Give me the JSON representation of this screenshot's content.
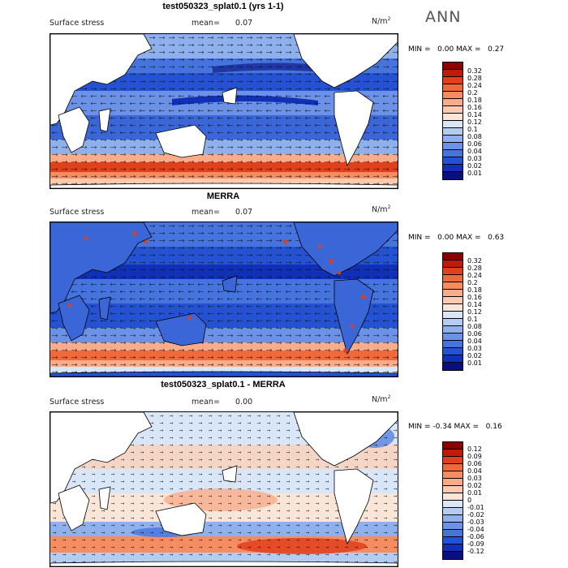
{
  "season": "ANN",
  "units_base": "N/m",
  "units_exp": "2",
  "panels": [
    {
      "title": "test050323_splat0.1 (yrs 1-1)",
      "variable": "Surface stress",
      "mean_label": "mean=",
      "mean_value": "0.07",
      "min_max": "MIN =   0.00 MAX =   0.27",
      "levels": [
        "0.32",
        "0.28",
        "0.24",
        "0.2",
        "0.18",
        "0.16",
        "0.14",
        "0.12",
        "0.1",
        "0.08",
        "0.06",
        "0.04",
        "0.03",
        "0.02",
        "0.01"
      ],
      "colors": [
        "#8b0000",
        "#bf1a0a",
        "#e0401c",
        "#ee6a3c",
        "#f58c62",
        "#f9ac8a",
        "#fbcab0",
        "#fbe5d6",
        "#d8e6f8",
        "#b3ccf2",
        "#8eb0ec",
        "#6b92e6",
        "#4574de",
        "#2552d2",
        "#1030b8",
        "#07107e"
      ]
    },
    {
      "title": "MERRA",
      "variable": "Surface stress",
      "mean_label": "mean=",
      "mean_value": "0.07",
      "min_max": "MIN =   0.00 MAX =   0.63",
      "levels": [
        "0.32",
        "0.28",
        "0.24",
        "0.2",
        "0.18",
        "0.16",
        "0.14",
        "0.12",
        "0.1",
        "0.08",
        "0.06",
        "0.04",
        "0.03",
        "0.02",
        "0.01"
      ],
      "colors": [
        "#8b0000",
        "#bf1a0a",
        "#e0401c",
        "#ee6a3c",
        "#f58c62",
        "#f9ac8a",
        "#fbcab0",
        "#fbe5d6",
        "#d8e6f8",
        "#b3ccf2",
        "#8eb0ec",
        "#6b92e6",
        "#4574de",
        "#2552d2",
        "#1030b8",
        "#07107e"
      ]
    },
    {
      "title": "test050323_splat0.1 - MERRA",
      "variable": "Surface stress",
      "mean_label": "mean=",
      "mean_value": "0.00",
      "min_max": "MIN = -0.34 MAX =   0.16",
      "levels": [
        "0.12",
        "0.09",
        "0.06",
        "0.04",
        "0.03",
        "0.02",
        "0.01",
        "0",
        "-0.01",
        "-0.02",
        "-0.03",
        "-0.04",
        "-0.06",
        "-0.09",
        "-0.12"
      ],
      "colors": [
        "#8b0000",
        "#bf1a0a",
        "#e0401c",
        "#ee6a3c",
        "#f58c62",
        "#f9ac8a",
        "#fbcab0",
        "#fbe5d6",
        "#d8e6f8",
        "#b3ccf2",
        "#8eb0ec",
        "#6b92e6",
        "#4574de",
        "#2552d2",
        "#1030b8",
        "#07107e"
      ]
    }
  ]
}
